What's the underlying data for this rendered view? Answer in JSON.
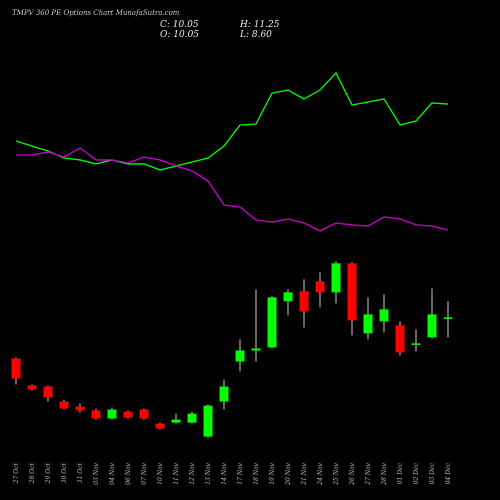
{
  "chart_data": {
    "type": "candlestick",
    "title": "TMPV 360 PE Options Chart MunafaSutra.com",
    "header": [
      "C: 10.05",
      "H: 11.25",
      "O: 10.05",
      "L: 8.60"
    ],
    "categories": [
      "27 Oct",
      "28 Oct",
      "29 Oct",
      "30 Oct",
      "31 Oct",
      "03 Nov",
      "04 Nov",
      "06 Nov",
      "07 Nov",
      "10 Nov",
      "11 Nov",
      "12 Nov",
      "13 Nov",
      "14 Nov",
      "17 Nov",
      "18 Nov",
      "19 Nov",
      "20 Nov",
      "21 Nov",
      "24 Nov",
      "25 Nov",
      "26 Nov",
      "27 Nov",
      "28 Nov",
      "01 Dec",
      "02 Dec",
      "03 Dec",
      "04 Dec"
    ],
    "open": [
      7.03,
      5.05,
      4.97,
      3.87,
      3.5,
      3.21,
      2.62,
      3.13,
      3.28,
      2.25,
      2.32,
      2.32,
      1.29,
      3.87,
      6.81,
      7.62,
      7.84,
      11.23,
      11.96,
      12.7,
      11.89,
      14.02,
      8.87,
      9.76,
      9.46,
      8.06,
      8.58,
      10.05
    ],
    "high": [
      7.11,
      5.12,
      5.05,
      4.01,
      3.72,
      3.35,
      3.43,
      3.21,
      3.35,
      2.32,
      2.98,
      3.13,
      3.65,
      5.49,
      8.43,
      12.11,
      11.6,
      12.11,
      12.85,
      13.36,
      14.17,
      14.1,
      11.52,
      11.74,
      9.76,
      9.17,
      12.18,
      11.25
    ],
    "low": [
      5.12,
      4.68,
      3.87,
      3.28,
      3.06,
      2.54,
      2.54,
      2.62,
      2.54,
      1.81,
      2.25,
      2.25,
      1.22,
      3.28,
      6.08,
      6.81,
      7.77,
      10.2,
      9.31,
      10.79,
      11.08,
      8.73,
      8.43,
      8.95,
      7.25,
      7.55,
      8.5,
      8.6
    ],
    "close": [
      5.56,
      4.75,
      4.16,
      3.35,
      3.21,
      2.62,
      3.28,
      2.69,
      2.62,
      1.88,
      2.54,
      2.98,
      3.57,
      4.97,
      7.62,
      7.77,
      11.52,
      11.89,
      10.49,
      11.89,
      14.02,
      9.83,
      10.27,
      10.64,
      7.47,
      8.14,
      10.27,
      10.05
    ],
    "up_color": "#00ff00",
    "down_color": "#ff0000",
    "ylim": [
      0.6,
      15
    ],
    "y2lim": [
      0,
      100
    ],
    "series": [
      {
        "color": "#00ff00",
        "axis": "y2",
        "values": [
          57.4,
          54.7,
          52.1,
          48.4,
          47.4,
          45.3,
          47.4,
          45.3,
          45.3,
          42.1,
          44.2,
          46.3,
          48.4,
          54.7,
          65.8,
          66.3,
          82.6,
          84.2,
          79.5,
          84.2,
          93.2,
          76.3,
          77.9,
          79.5,
          65.8,
          67.9,
          77.4,
          76.8
        ]
      },
      {
        "color": "#cc00cc",
        "axis": "y2",
        "values": [
          50,
          50,
          51.6,
          48.9,
          53.7,
          47.4,
          47.4,
          45.8,
          48.9,
          47.4,
          44.2,
          41.6,
          36.3,
          23.7,
          22.6,
          15.8,
          14.7,
          16.3,
          14.2,
          10,
          14.2,
          13.2,
          12.6,
          17.4,
          16.3,
          13.2,
          12.6,
          10.5
        ]
      }
    ]
  }
}
